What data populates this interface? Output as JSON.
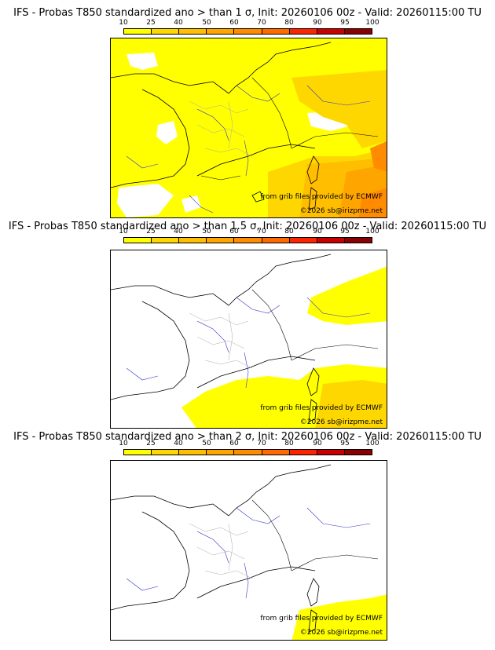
{
  "scale_labels": [
    "10",
    "25",
    "40",
    "50",
    "60",
    "70",
    "80",
    "90",
    "95",
    "100"
  ],
  "scale_colors": [
    "#ffff00",
    "#ffd700",
    "#ffbf00",
    "#ffa500",
    "#ff8c00",
    "#ff6a00",
    "#ff2400",
    "#c80000",
    "#8b0000",
    "#4d0000"
  ],
  "panels": [
    {
      "title": "IFS - Probas T850  standardized ano > than 1 σ, Init: 20260106 00z - Valid: 20260115:00 TU",
      "source": "from grib files provided by ECMWF",
      "copyright": "©2026 sb@irizpme.net"
    },
    {
      "title": "IFS - Probas T850  standardized ano > than 1.5 σ, Init: 20260106 00z - Valid: 20260115:00 TU",
      "source": "from grib files provided by ECMWF",
      "copyright": "©2026 sb@irizpme.net"
    },
    {
      "title": "IFS - Probas T850  standardized ano > than 2 σ, Init: 20260106 00z - Valid: 20260115:00 TU",
      "source": "from grib files provided by ECMWF",
      "copyright": "©2026 sb@irizpme.net"
    }
  ]
}
